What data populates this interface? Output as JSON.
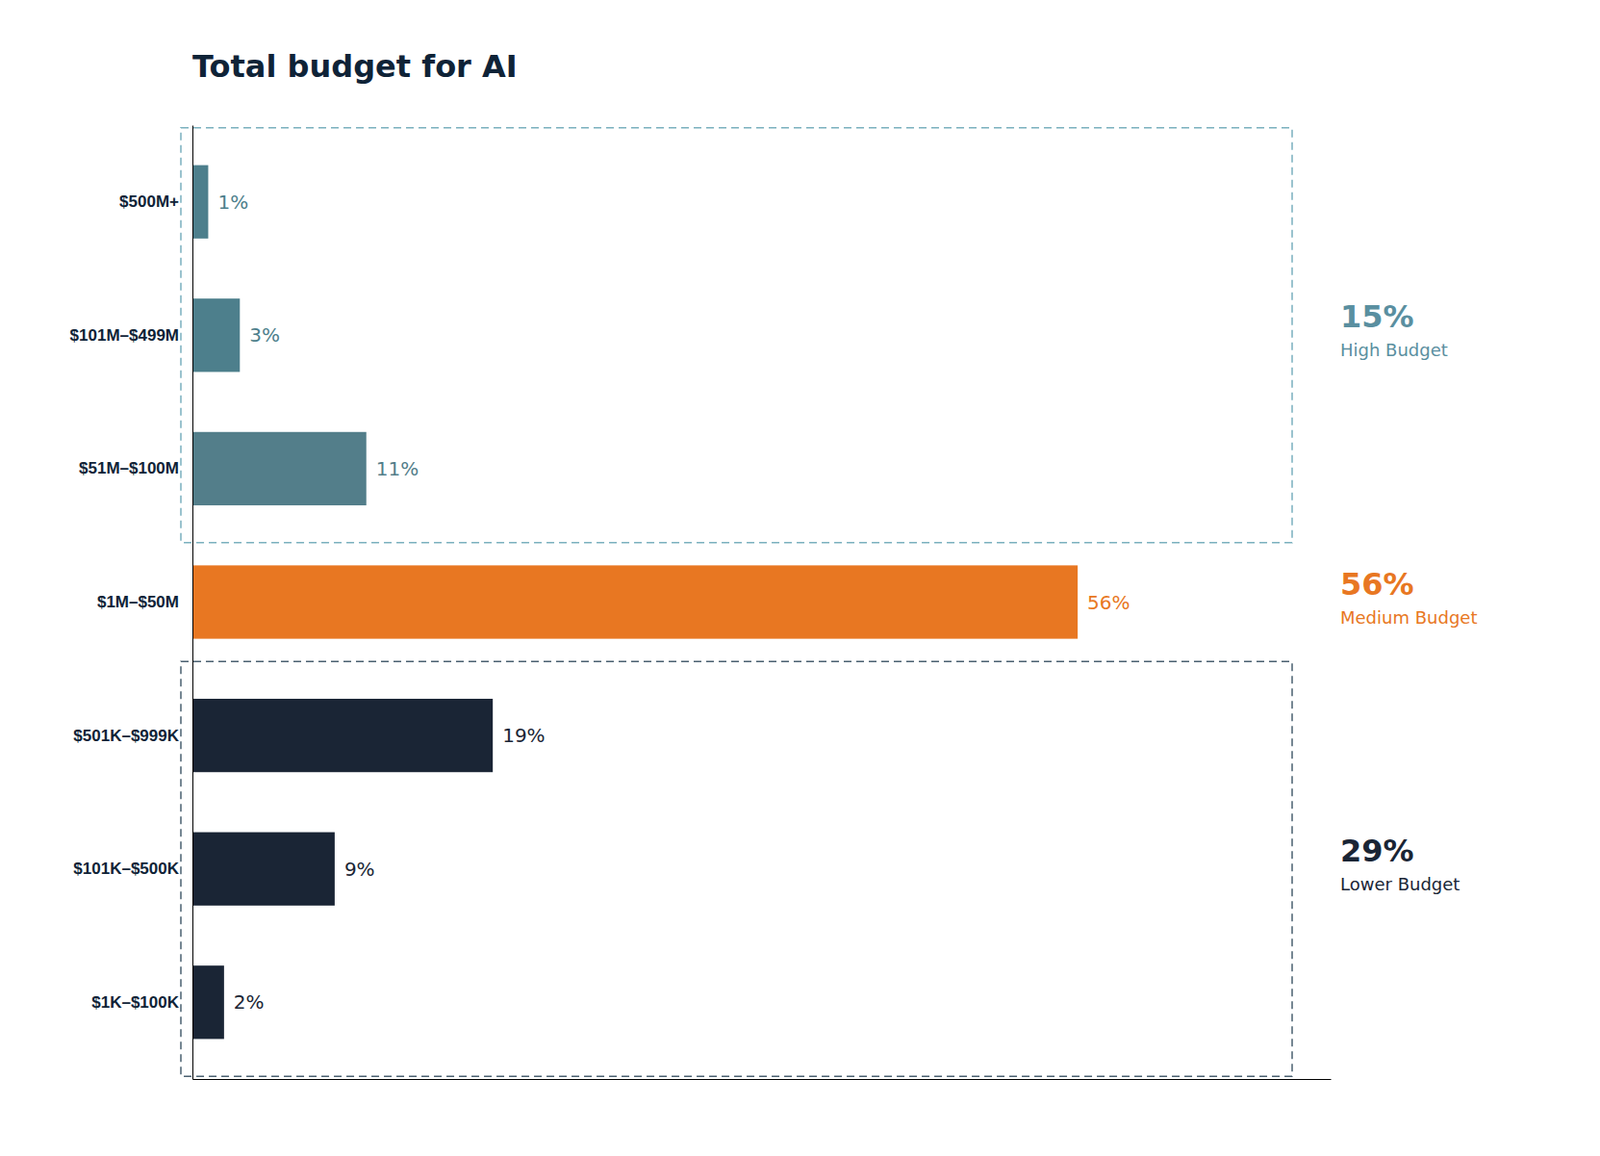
{
  "chart_data": {
    "type": "bar",
    "orientation": "horizontal",
    "title": "Total budget for AI",
    "categories": [
      "$500M+",
      "$101M–$499M",
      "$51M–$100M",
      "$1M–$50M",
      "$501K–$999K",
      "$101K–$500K",
      "$1K–$100K"
    ],
    "values": [
      1,
      3,
      11,
      56,
      19,
      9,
      2
    ],
    "value_labels": [
      "1%",
      "3%",
      "11%",
      "56%",
      "19%",
      "9%",
      "2%"
    ],
    "colors": [
      "#4d7f8c",
      "#4d7f8c",
      "#537e8a",
      "#e87722",
      "#1a2535",
      "#1a2535",
      "#1a2535"
    ],
    "xlim": [
      0,
      72
    ],
    "grid": false,
    "data_labels": true,
    "tick_labels": "y",
    "annotations": [
      {
        "text": "15%",
        "subtext": "High Budget",
        "color": "#5a8fa0",
        "categories": [
          "$500M+",
          "$101M–$499M",
          "$51M–$100M"
        ],
        "box_color": "#7ab0be"
      },
      {
        "text": "56%",
        "subtext": "Medium Budget",
        "color": "#e87722",
        "categories": [
          "$1M–$50M"
        ]
      },
      {
        "text": "29%",
        "subtext": "Lower Budget",
        "color": "#1a2535",
        "categories": [
          "$501K–$999K",
          "$101K–$500K",
          "$1K–$100K"
        ],
        "box_color": "#4a6070"
      }
    ]
  }
}
